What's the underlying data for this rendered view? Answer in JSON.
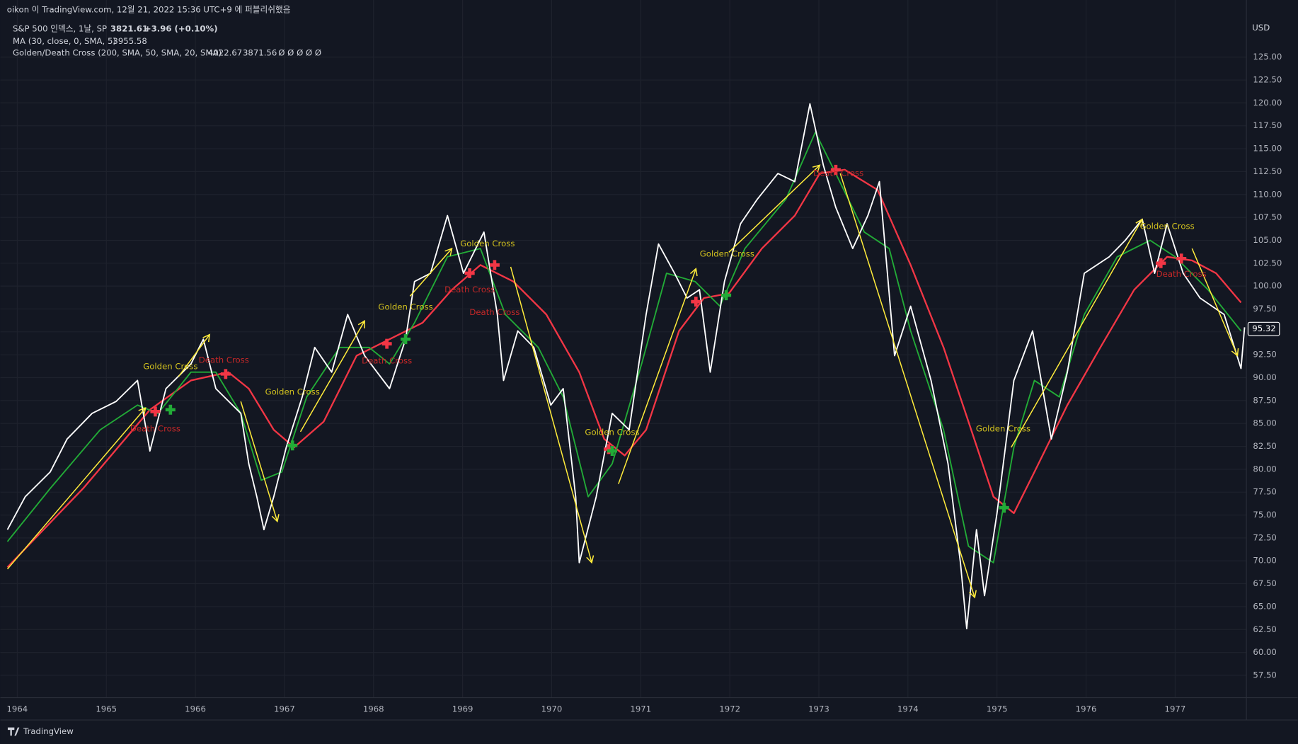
{
  "chart_data": {
    "type": "line",
    "publisher_note": "oikon 이 TradingView.com, 12월 21, 2022 15:36 UTC+9 에 퍼블리쉬했음",
    "title": "S&P 500 인덱스, 1날, SP",
    "last": 3821.61,
    "change": "+3.96 (+0.10%)",
    "indicators": [
      {
        "label": "MA (30, close, 0, SMA, 5)",
        "readouts": [
          {
            "value": 3955.58,
            "color": "#4dd0c4"
          }
        ]
      },
      {
        "label": "Golden/Death Cross (200, SMA, 50, SMA, 20, SMA)",
        "readouts": [
          {
            "value": 4022.67,
            "color": "#f23645"
          },
          {
            "value": 3871.56,
            "color": "#22ab37"
          }
        ],
        "extra": "Ø Ø Ø Ø Ø"
      }
    ],
    "currency": "USD",
    "last_price": 95.32,
    "brand": "TradingView",
    "xlim": [
      1963.81,
      1977.8
    ],
    "xticks": [
      1964,
      1965,
      1966,
      1967,
      1968,
      1969,
      1970,
      1971,
      1972,
      1973,
      1974,
      1975,
      1976,
      1977
    ],
    "ylim": [
      55.06,
      129.25
    ],
    "yticks": [
      {
        "value": 57.5,
        "label": "57.50"
      },
      {
        "value": 60,
        "label": "60.00"
      },
      {
        "value": 62.5,
        "label": "62.50"
      },
      {
        "value": 65,
        "label": "65.00"
      },
      {
        "value": 67.5,
        "label": "67.50"
      },
      {
        "value": 70,
        "label": "70.00"
      },
      {
        "value": 72.5,
        "label": "72.50"
      },
      {
        "value": 75,
        "label": "75.00"
      },
      {
        "value": 77.5,
        "label": "77.50"
      },
      {
        "value": 80,
        "label": "80.00"
      },
      {
        "value": 82.5,
        "label": "82.50"
      },
      {
        "value": 85,
        "label": "85.00"
      },
      {
        "value": 87.5,
        "label": "87.50"
      },
      {
        "value": 90,
        "label": "90.00"
      },
      {
        "value": 92.5,
        "label": "92.50"
      },
      {
        "value": 95,
        "label": "95.00"
      },
      {
        "value": 97.5,
        "label": "97.50"
      },
      {
        "value": 100,
        "label": "100.00"
      },
      {
        "value": 102.5,
        "label": "102.50"
      },
      {
        "value": 105,
        "label": "105.00"
      },
      {
        "value": 107.5,
        "label": "107.50"
      },
      {
        "value": 110,
        "label": "110.00"
      },
      {
        "value": 112.5,
        "label": "112.50"
      },
      {
        "value": 115,
        "label": "115.00"
      },
      {
        "value": 117.5,
        "label": "117.50"
      },
      {
        "value": 120,
        "label": "120.00"
      },
      {
        "value": 122.5,
        "label": "122.50"
      },
      {
        "value": 125,
        "label": "125.00"
      }
    ],
    "grid": true,
    "series": [
      {
        "color": "#f23645",
        "width": 2,
        "x": [
          1963.89,
          1964.74,
          1965.49,
          1965.95,
          1966.37,
          1966.6,
          1966.88,
          1967.11,
          1967.44,
          1967.81,
          1968.18,
          1968.55,
          1968.88,
          1969.2,
          1969.57,
          1969.94,
          1970.31,
          1970.59,
          1970.82,
          1971.06,
          1971.43,
          1971.71,
          1971.99,
          1972.36,
          1972.73,
          1973.01,
          1973.29,
          1973.66,
          1974.03,
          1974.4,
          1974.68,
          1974.96,
          1975.19,
          1975.42,
          1975.79,
          1976.16,
          1976.54,
          1976.91,
          1977.19,
          1977.46,
          1977.74
        ],
        "values": [
          69.3,
          77.9,
          86.5,
          89.7,
          90.6,
          88.8,
          84.3,
          82.4,
          85.2,
          92.4,
          94.2,
          96.0,
          99.6,
          102.3,
          100.5,
          96.9,
          90.6,
          83.3,
          81.5,
          84.3,
          95.1,
          98.7,
          99.2,
          104.1,
          107.7,
          112.3,
          112.7,
          110.5,
          102.3,
          93.3,
          85.2,
          77.0,
          75.2,
          79.7,
          87.0,
          93.3,
          99.6,
          103.2,
          102.8,
          101.4,
          98.2
        ]
      },
      {
        "color": "#22ab37",
        "width": 1.6,
        "x": [
          1963.89,
          1964.37,
          1964.93,
          1965.35,
          1965.58,
          1965.95,
          1966.23,
          1966.51,
          1966.74,
          1966.97,
          1967.25,
          1967.62,
          1967.95,
          1968.18,
          1968.46,
          1968.83,
          1969.2,
          1969.48,
          1969.85,
          1970.13,
          1970.41,
          1970.68,
          1971.01,
          1971.29,
          1971.61,
          1971.89,
          1972.17,
          1972.63,
          1972.96,
          1973.19,
          1973.51,
          1973.79,
          1974.03,
          1974.4,
          1974.68,
          1974.96,
          1975.19,
          1975.42,
          1975.7,
          1975.98,
          1976.35,
          1976.72,
          1977.0,
          1977.37,
          1977.74
        ],
        "values": [
          72.1,
          77.9,
          84.3,
          87.0,
          86.1,
          90.6,
          90.6,
          86.1,
          78.8,
          79.7,
          87.9,
          93.3,
          93.3,
          91.5,
          96.0,
          103.2,
          104.1,
          96.9,
          93.3,
          87.9,
          77.0,
          80.6,
          91.5,
          101.4,
          100.5,
          97.8,
          104.1,
          109.5,
          116.8,
          112.3,
          105.9,
          104.1,
          95.1,
          84.3,
          71.6,
          69.8,
          82.4,
          89.7,
          87.9,
          96.9,
          103.2,
          105.0,
          103.2,
          99.6,
          95.1
        ]
      },
      {
        "color": "#ffffff",
        "width": 1.6,
        "x": [
          1963.89,
          1964.09,
          1964.37,
          1964.56,
          1964.84,
          1965.11,
          1965.35,
          1965.49,
          1965.67,
          1965.95,
          1966.09,
          1966.23,
          1966.51,
          1966.6,
          1966.69,
          1966.77,
          1966.88,
          1967.02,
          1967.2,
          1967.34,
          1967.53,
          1967.71,
          1967.9,
          1968.18,
          1968.36,
          1968.46,
          1968.64,
          1968.83,
          1969.01,
          1969.24,
          1969.39,
          1969.46,
          1969.62,
          1969.8,
          1969.99,
          1970.13,
          1970.27,
          1970.31,
          1970.5,
          1970.68,
          1970.87,
          1971.06,
          1971.2,
          1971.38,
          1971.52,
          1971.66,
          1971.78,
          1971.94,
          1972.12,
          1972.31,
          1972.54,
          1972.73,
          1972.9,
          1973.05,
          1973.19,
          1973.38,
          1973.55,
          1973.68,
          1973.85,
          1974.03,
          1974.26,
          1974.45,
          1974.59,
          1974.66,
          1974.77,
          1974.86,
          1975.0,
          1975.19,
          1975.4,
          1975.61,
          1975.79,
          1975.98,
          1976.26,
          1976.44,
          1976.63,
          1976.77,
          1976.91,
          1977.09,
          1977.28,
          1977.55,
          1977.74,
          1977.78
        ],
        "values": [
          73.4,
          77.0,
          79.7,
          83.3,
          86.1,
          87.4,
          89.7,
          82.0,
          88.8,
          91.5,
          94.2,
          88.8,
          86.1,
          80.6,
          77.0,
          73.4,
          77.0,
          82.4,
          87.9,
          93.3,
          90.6,
          96.9,
          92.4,
          88.8,
          94.2,
          100.5,
          101.4,
          107.7,
          101.4,
          105.9,
          96.9,
          89.7,
          95.1,
          93.3,
          87.0,
          88.8,
          77.0,
          69.8,
          77.0,
          86.1,
          84.3,
          96.9,
          104.6,
          101.4,
          98.7,
          99.6,
          90.6,
          100.5,
          106.8,
          109.5,
          112.3,
          111.4,
          119.9,
          113.2,
          108.6,
          104.1,
          107.7,
          111.4,
          92.4,
          97.8,
          89.7,
          80.6,
          69.8,
          62.6,
          73.4,
          66.2,
          75.2,
          89.7,
          95.1,
          83.3,
          90.6,
          101.4,
          103.2,
          105.0,
          107.3,
          101.4,
          106.8,
          101.4,
          98.7,
          96.9,
          91.0,
          95.5
        ]
      }
    ],
    "arrows": [
      {
        "x": [
          1963.89,
          1965.44
        ],
        "y": [
          69.1,
          86.7
        ]
      },
      {
        "x": [
          1965.81,
          1966.16
        ],
        "y": [
          90.1,
          94.7
        ]
      },
      {
        "x": [
          1966.51,
          1966.92
        ],
        "y": [
          87.4,
          74.3
        ]
      },
      {
        "x": [
          1967.18,
          1967.9
        ],
        "y": [
          84.1,
          96.2
        ]
      },
      {
        "x": [
          1968.41,
          1968.88
        ],
        "y": [
          98.9,
          104.1
        ]
      },
      {
        "x": [
          1969.54,
          1970.45
        ],
        "y": [
          102.1,
          69.8
        ]
      },
      {
        "x": [
          1970.75,
          1971.62
        ],
        "y": [
          78.4,
          101.9
        ]
      },
      {
        "x": [
          1971.99,
          1973.01
        ],
        "y": [
          103.7,
          113.2
        ]
      },
      {
        "x": [
          1973.24,
          1974.75
        ],
        "y": [
          112.3,
          66.0
        ]
      },
      {
        "x": [
          1975.16,
          1976.63
        ],
        "y": [
          82.4,
          107.3
        ]
      },
      {
        "x": [
          1977.19,
          1977.7
        ],
        "y": [
          104.1,
          92.4
        ]
      }
    ],
    "arrow_color": "#ffeb3b",
    "markers": [
      {
        "x": 1965.55,
        "y": 86.3,
        "color": "#f23645"
      },
      {
        "x": 1966.34,
        "y": 90.4,
        "color": "#f23645"
      },
      {
        "x": 1968.15,
        "y": 93.7,
        "color": "#f23645"
      },
      {
        "x": 1969.08,
        "y": 101.4,
        "color": "#f23645"
      },
      {
        "x": 1969.36,
        "y": 102.3,
        "color": "#f23645"
      },
      {
        "x": 1970.64,
        "y": 82.2,
        "color": "#f23645"
      },
      {
        "x": 1971.62,
        "y": 98.3,
        "color": "#f23645"
      },
      {
        "x": 1973.19,
        "y": 112.7,
        "color": "#f23645"
      },
      {
        "x": 1976.84,
        "y": 102.5,
        "color": "#f23645"
      },
      {
        "x": 1977.07,
        "y": 103.0,
        "color": "#f23645"
      },
      {
        "x": 1965.72,
        "y": 86.5,
        "color": "#22ab37"
      },
      {
        "x": 1967.09,
        "y": 82.6,
        "color": "#22ab37"
      },
      {
        "x": 1968.36,
        "y": 94.2,
        "color": "#22ab37"
      },
      {
        "x": 1970.68,
        "y": 82.0,
        "color": "#22ab37"
      },
      {
        "x": 1971.96,
        "y": 99.0,
        "color": "#22ab37"
      },
      {
        "x": 1975.08,
        "y": 75.8,
        "color": "#22ab37"
      }
    ],
    "annotations": [
      {
        "text": "Golden Cross",
        "x": 1965.72,
        "y": 91.2,
        "color": "#d4c31f"
      },
      {
        "text": "Golden Cross",
        "x": 1967.09,
        "y": 88.4,
        "color": "#d4c31f"
      },
      {
        "text": "Golden Cross",
        "x": 1968.36,
        "y": 97.7,
        "color": "#d4c31f"
      },
      {
        "text": "Golden Cross",
        "x": 1969.28,
        "y": 104.6,
        "color": "#d4c31f"
      },
      {
        "text": "Golden Cross",
        "x": 1970.68,
        "y": 84.0,
        "color": "#d4c31f"
      },
      {
        "text": "Golden Cross",
        "x": 1971.97,
        "y": 103.5,
        "color": "#d4c31f"
      },
      {
        "text": "Golden Cross",
        "x": 1975.07,
        "y": 84.4,
        "color": "#d4c31f"
      },
      {
        "text": "Golden Cross",
        "x": 1976.91,
        "y": 106.5,
        "color": "#d4c31f"
      },
      {
        "text": "Death Cross",
        "x": 1965.55,
        "y": 84.4,
        "color": "#c62828"
      },
      {
        "text": "Death Cross",
        "x": 1966.32,
        "y": 91.9,
        "color": "#c62828"
      },
      {
        "text": "Death Cross",
        "x": 1968.15,
        "y": 91.8,
        "color": "#c62828"
      },
      {
        "text": "Death Cross",
        "x": 1969.08,
        "y": 99.6,
        "color": "#c62828"
      },
      {
        "text": "Death Cross",
        "x": 1969.36,
        "y": 97.1,
        "color": "#c62828"
      },
      {
        "text": "Death Cross",
        "x": 1973.22,
        "y": 112.3,
        "color": "#c62828"
      },
      {
        "text": "Death Cross",
        "x": 1977.07,
        "y": 101.3,
        "color": "#c62828"
      }
    ]
  }
}
